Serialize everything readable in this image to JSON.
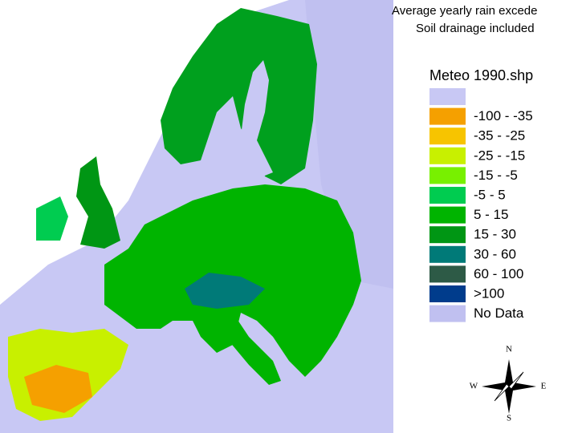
{
  "title": {
    "line1": "Average yearly rain excede",
    "line2": "Soil drainage included"
  },
  "legend": {
    "title": "Meteo 1990.shp",
    "items": [
      {
        "color": "#c8c8f4"
      },
      {
        "label": "-100 - -35",
        "color": "#f5a000"
      },
      {
        "label": "-35 - -25",
        "color": "#f7c400"
      },
      {
        "label": "-25 - -15",
        "color": "#c8f000"
      },
      {
        "label": "-15 - -5",
        "color": "#78f000"
      },
      {
        "label": "-5 - 5",
        "color": "#00cc50"
      },
      {
        "label": "5 - 15",
        "color": "#00b400"
      },
      {
        "label": "15 - 30",
        "color": "#009614"
      },
      {
        "label": "30 - 60",
        "color": "#007a78"
      },
      {
        "label": "60 - 100",
        "color": "#2d5a46"
      },
      {
        "label": ">100",
        "color": "#003c8c"
      },
      {
        "label": "No Data",
        "color": "#c0c0f0"
      }
    ]
  },
  "compass": {
    "north": "N",
    "south": "S",
    "east": "E",
    "west": "W"
  }
}
